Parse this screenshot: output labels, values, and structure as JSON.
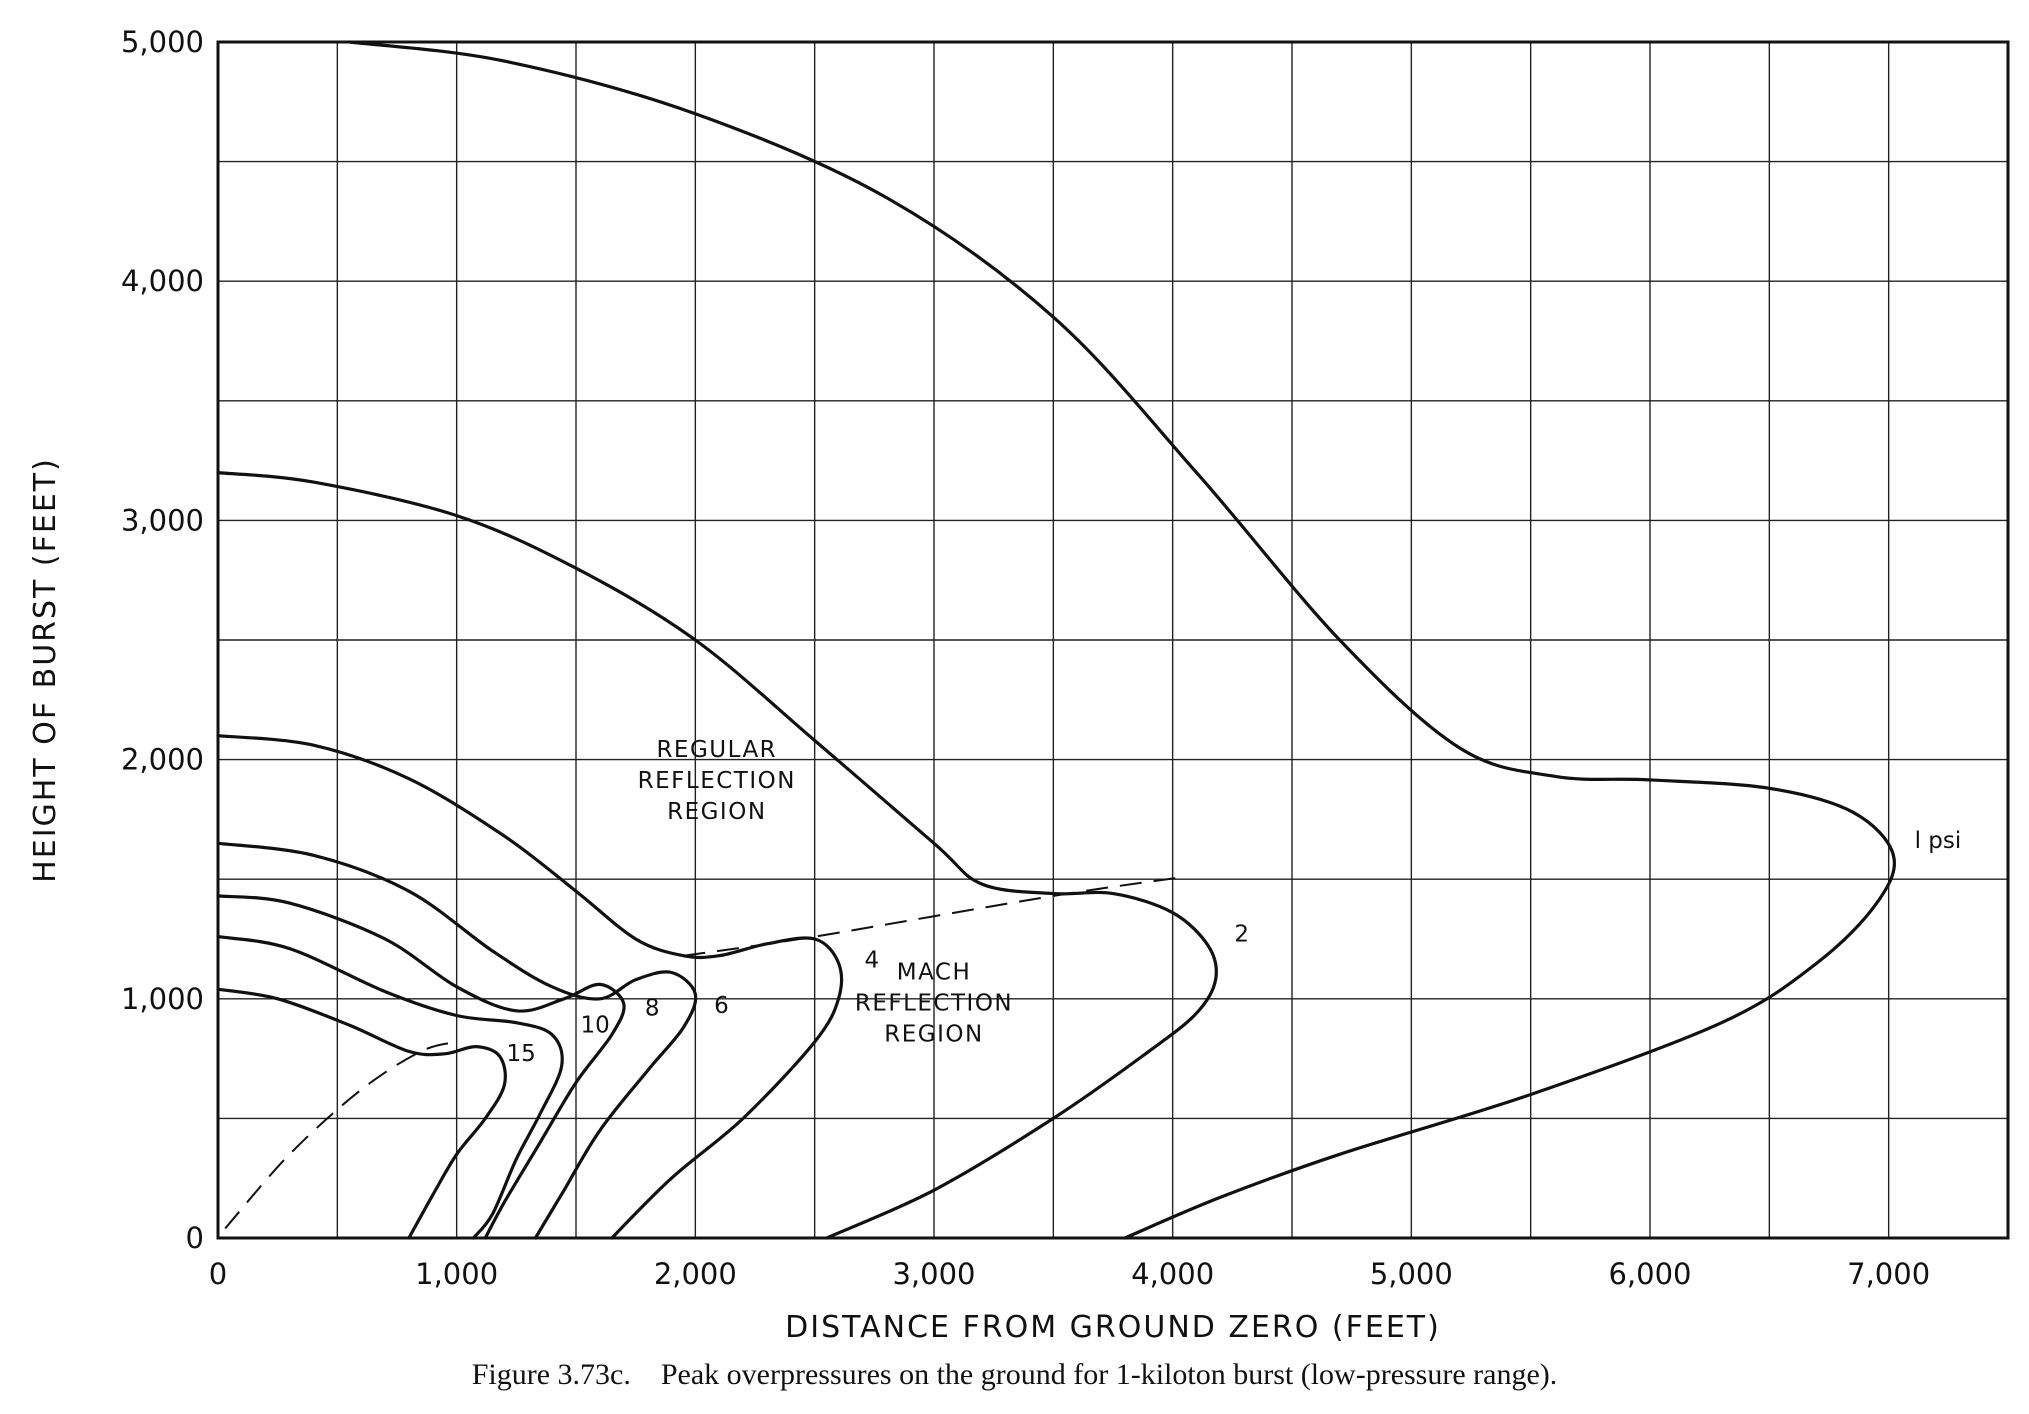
{
  "chart_data": {
    "type": "line",
    "caption": "Figure 3.73c.    Peak overpressures on the ground for 1-kiloton burst (low-pressure range).",
    "xlabel": "DISTANCE FROM GROUND ZERO (FEET)",
    "ylabel": "HEIGHT OF BURST (FEET)",
    "xlim": [
      0,
      7500
    ],
    "ylim": [
      0,
      5000
    ],
    "grid": true,
    "x_ticks": [
      "0",
      "1,000",
      "2,000",
      "3,000",
      "4,000",
      "5,000",
      "6,000",
      "7,000"
    ],
    "y_ticks": [
      "0",
      "1,000",
      "2,000",
      "3,000",
      "4,000",
      "5,000"
    ],
    "region_labels": [
      {
        "lines": [
          "REGULAR",
          "REFLECTION",
          "REGION"
        ]
      },
      {
        "lines": [
          "MACH",
          "REFLECTION",
          "REGION"
        ]
      }
    ],
    "series": [
      {
        "name": "1 psi",
        "label": "l psi",
        "points": [
          [
            550,
            5000
          ],
          [
            1200,
            4920
          ],
          [
            2000,
            4700
          ],
          [
            2800,
            4350
          ],
          [
            3500,
            3850
          ],
          [
            4100,
            3200
          ],
          [
            4700,
            2500
          ],
          [
            5200,
            2050
          ],
          [
            5600,
            1930
          ],
          [
            6000,
            1915
          ],
          [
            6500,
            1880
          ],
          [
            6850,
            1780
          ],
          [
            7020,
            1600
          ],
          [
            6950,
            1400
          ],
          [
            6700,
            1150
          ],
          [
            6300,
            900
          ],
          [
            5500,
            600
          ],
          [
            4700,
            350
          ],
          [
            4200,
            170
          ],
          [
            3800,
            0
          ]
        ]
      },
      {
        "name": "2",
        "label": "2",
        "points": [
          [
            0,
            3200
          ],
          [
            400,
            3160
          ],
          [
            1000,
            3020
          ],
          [
            1500,
            2800
          ],
          [
            2000,
            2500
          ],
          [
            2500,
            2080
          ],
          [
            3000,
            1650
          ],
          [
            3200,
            1480
          ],
          [
            3500,
            1440
          ],
          [
            3750,
            1440
          ],
          [
            4000,
            1360
          ],
          [
            4150,
            1220
          ],
          [
            4180,
            1080
          ],
          [
            4100,
            940
          ],
          [
            3900,
            780
          ],
          [
            3500,
            500
          ],
          [
            3000,
            200
          ],
          [
            2550,
            0
          ]
        ]
      },
      {
        "name": "4",
        "label": "4",
        "points": [
          [
            0,
            2100
          ],
          [
            400,
            2060
          ],
          [
            800,
            1920
          ],
          [
            1200,
            1680
          ],
          [
            1500,
            1450
          ],
          [
            1750,
            1250
          ],
          [
            1950,
            1180
          ],
          [
            2100,
            1180
          ],
          [
            2300,
            1230
          ],
          [
            2500,
            1250
          ],
          [
            2600,
            1150
          ],
          [
            2600,
            1000
          ],
          [
            2500,
            820
          ],
          [
            2200,
            500
          ],
          [
            1900,
            250
          ],
          [
            1650,
            0
          ]
        ]
      },
      {
        "name": "6",
        "label": "6",
        "points": [
          [
            0,
            1650
          ],
          [
            400,
            1600
          ],
          [
            800,
            1450
          ],
          [
            1150,
            1200
          ],
          [
            1400,
            1050
          ],
          [
            1600,
            1000
          ],
          [
            1750,
            1080
          ],
          [
            1900,
            1110
          ],
          [
            2000,
            1020
          ],
          [
            1950,
            880
          ],
          [
            1800,
            700
          ],
          [
            1600,
            450
          ],
          [
            1450,
            200
          ],
          [
            1330,
            0
          ]
        ]
      },
      {
        "name": "8",
        "label": "8",
        "points": [
          [
            0,
            1430
          ],
          [
            300,
            1400
          ],
          [
            700,
            1250
          ],
          [
            1000,
            1050
          ],
          [
            1250,
            950
          ],
          [
            1450,
            1000
          ],
          [
            1600,
            1060
          ],
          [
            1700,
            980
          ],
          [
            1650,
            850
          ],
          [
            1500,
            650
          ],
          [
            1350,
            400
          ],
          [
            1200,
            150
          ],
          [
            1120,
            0
          ]
        ]
      },
      {
        "name": "10",
        "label": "10",
        "points": [
          [
            0,
            1260
          ],
          [
            300,
            1210
          ],
          [
            700,
            1030
          ],
          [
            1000,
            930
          ],
          [
            1250,
            900
          ],
          [
            1400,
            850
          ],
          [
            1440,
            720
          ],
          [
            1350,
            520
          ],
          [
            1250,
            330
          ],
          [
            1150,
            100
          ],
          [
            1070,
            0
          ]
        ]
      },
      {
        "name": "15",
        "label": "15",
        "points": [
          [
            0,
            1040
          ],
          [
            250,
            1000
          ],
          [
            550,
            890
          ],
          [
            800,
            780
          ],
          [
            950,
            770
          ],
          [
            1080,
            800
          ],
          [
            1180,
            760
          ],
          [
            1200,
            640
          ],
          [
            1120,
            500
          ],
          [
            1000,
            350
          ],
          [
            900,
            180
          ],
          [
            800,
            0
          ]
        ]
      }
    ],
    "dashed_boundaries": [
      {
        "points": [
          [
            1950,
            1180
          ],
          [
            2500,
            1260
          ],
          [
            3500,
            1430
          ],
          [
            4050,
            1510
          ]
        ]
      },
      {
        "points": [
          [
            30,
            40
          ],
          [
            300,
            350
          ],
          [
            600,
            620
          ],
          [
            850,
            780
          ],
          [
            1000,
            820
          ]
        ]
      }
    ]
  }
}
